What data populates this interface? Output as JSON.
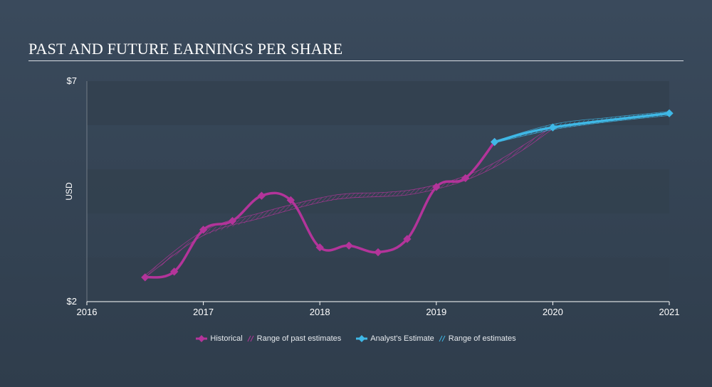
{
  "title": "PAST AND FUTURE EARNINGS PER SHARE",
  "colors": {
    "historical": "#b3349a",
    "estimate": "#3fb8e6",
    "grid_band": "#33414f",
    "axis": "#ffffff"
  },
  "legend": {
    "historical": "Historical",
    "past_range": "Range of past estimates",
    "estimate": "Analyst's Estimate",
    "future_range": "Range of estimates"
  },
  "chart_data": {
    "type": "line",
    "title": "PAST AND FUTURE EARNINGS PER SHARE",
    "xlabel": "",
    "ylabel": "USD",
    "xlim": [
      2016,
      2021.0
    ],
    "ylim": [
      2,
      7
    ],
    "y_tick_labels": [
      {
        "value": 7,
        "label": "$7"
      },
      {
        "value": 2,
        "label": "$2"
      }
    ],
    "x_tick_labels": [
      "2016",
      "2017",
      "2018",
      "2019",
      "2020",
      "2021"
    ],
    "x_ticks": [
      2016,
      2017,
      2018,
      2019,
      2020,
      2021
    ],
    "grid_bands": [
      [
        6,
        7
      ],
      [
        4,
        5
      ],
      [
        2,
        3
      ]
    ],
    "legend_position": "bottom",
    "series": [
      {
        "name": "Historical",
        "key": "historical",
        "points": [
          [
            2016.5,
            2.55
          ],
          [
            2016.75,
            2.68
          ],
          [
            2017.0,
            3.63
          ],
          [
            2017.25,
            3.83
          ],
          [
            2017.5,
            4.4
          ],
          [
            2017.75,
            4.3
          ],
          [
            2018.0,
            3.23
          ],
          [
            2018.25,
            3.27
          ],
          [
            2018.5,
            3.12
          ],
          [
            2018.75,
            3.42
          ],
          [
            2019.0,
            4.6
          ],
          [
            2019.25,
            4.8
          ],
          [
            2019.5,
            5.62
          ]
        ]
      },
      {
        "name": "Analyst's Estimate",
        "key": "estimate",
        "points": [
          [
            2019.5,
            5.62
          ],
          [
            2020.0,
            5.95
          ],
          [
            2021.0,
            6.27
          ]
        ]
      }
    ],
    "past_estimate_range": {
      "name": "Range of past estimates",
      "x": [
        2016.5,
        2017.0,
        2017.5,
        2018.0,
        2018.25,
        2018.5,
        2018.75,
        2019.0,
        2019.25,
        2019.5,
        2019.75,
        2020.0
      ],
      "low": [
        2.55,
        3.5,
        3.9,
        4.25,
        4.35,
        4.38,
        4.42,
        4.55,
        4.75,
        5.05,
        5.45,
        5.92
      ],
      "high": [
        2.6,
        3.6,
        4.02,
        4.35,
        4.45,
        4.47,
        4.52,
        4.65,
        4.85,
        5.15,
        5.55,
        5.98
      ]
    },
    "future_estimate_range": {
      "name": "Range of estimates",
      "x": [
        2019.5,
        2020.0,
        2020.5,
        2021.0
      ],
      "low": [
        5.6,
        5.9,
        6.08,
        6.22
      ],
      "high": [
        5.64,
        6.02,
        6.18,
        6.31
      ]
    }
  }
}
